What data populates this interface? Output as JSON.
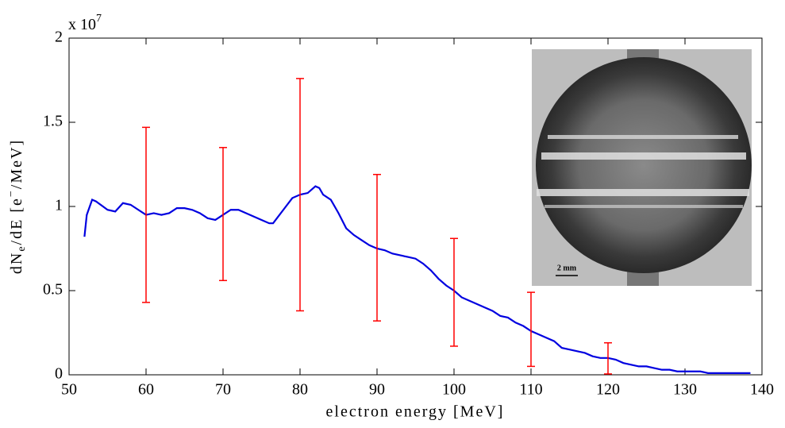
{
  "chart_data": {
    "type": "line",
    "xlabel": "electron energy [MeV]",
    "ylabel_parts": [
      "dN",
      "e",
      "/dE [e",
      "−",
      "/MeV]"
    ],
    "y_scale_label": "x 10",
    "y_scale_exponent": "7",
    "inset_scale_label": "2 mm",
    "xlim": [
      50,
      140
    ],
    "xticks": [
      50,
      60,
      70,
      80,
      90,
      100,
      110,
      120,
      130,
      140
    ],
    "ylim": [
      0,
      2
    ],
    "yticks": [
      0,
      0.5,
      1,
      1.5,
      2
    ],
    "series": [
      {
        "color": "#0000e0",
        "x": [
          52,
          52.3,
          53,
          53.5,
          55,
          56,
          57,
          58,
          59,
          60,
          61,
          62,
          63,
          64,
          65,
          66,
          67,
          68,
          69,
          70,
          71,
          72,
          73,
          74,
          75,
          76,
          76.5,
          77,
          78,
          79,
          80,
          81,
          82,
          82.5,
          83,
          84,
          85,
          86,
          87,
          88,
          89,
          90,
          91,
          92,
          93,
          94,
          95,
          96,
          97,
          98,
          99,
          100,
          101,
          102,
          103,
          104,
          105,
          106,
          107,
          108,
          109,
          110,
          111,
          112,
          113,
          114,
          115,
          116,
          117,
          118,
          119,
          120,
          121,
          122,
          123,
          124,
          125,
          126,
          127,
          128,
          129,
          130,
          132,
          133,
          135,
          138.5
        ],
        "values": [
          0.82,
          0.95,
          1.04,
          1.03,
          0.98,
          0.97,
          1.02,
          1.01,
          0.98,
          0.95,
          0.96,
          0.95,
          0.96,
          0.99,
          0.99,
          0.98,
          0.96,
          0.93,
          0.92,
          0.95,
          0.98,
          0.98,
          0.96,
          0.94,
          0.92,
          0.9,
          0.9,
          0.93,
          0.99,
          1.05,
          1.07,
          1.08,
          1.12,
          1.11,
          1.07,
          1.04,
          0.96,
          0.87,
          0.83,
          0.8,
          0.77,
          0.75,
          0.74,
          0.72,
          0.71,
          0.7,
          0.69,
          0.66,
          0.62,
          0.57,
          0.53,
          0.5,
          0.46,
          0.44,
          0.42,
          0.4,
          0.38,
          0.35,
          0.34,
          0.31,
          0.29,
          0.26,
          0.24,
          0.22,
          0.2,
          0.16,
          0.15,
          0.14,
          0.13,
          0.11,
          0.1,
          0.1,
          0.09,
          0.07,
          0.06,
          0.05,
          0.05,
          0.04,
          0.03,
          0.03,
          0.02,
          0.02,
          0.02,
          0.01,
          0.01,
          0.01
        ]
      },
      {
        "color": "#ff0000",
        "x": [
          60,
          70,
          80,
          90,
          100,
          110,
          120
        ],
        "values": [
          0.95,
          0.955,
          1.07,
          0.755,
          0.49,
          0.27,
          0.0975
        ],
        "errors": [
          0.52,
          0.395,
          0.69,
          0.435,
          0.32,
          0.22,
          0.0925
        ]
      }
    ]
  }
}
